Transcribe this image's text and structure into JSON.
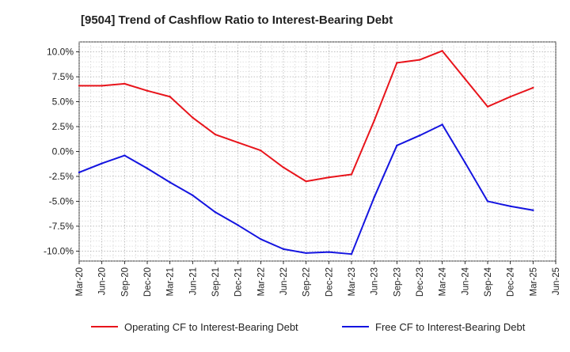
{
  "chart_data": {
    "type": "line",
    "title": "[9504]  Trend of Cashflow Ratio to Interest-Bearing Debt",
    "xlabel": "",
    "ylabel": "",
    "categories": [
      "Mar-20",
      "Jun-20",
      "Sep-20",
      "Dec-20",
      "Mar-21",
      "Jun-21",
      "Sep-21",
      "Dec-21",
      "Mar-22",
      "Jun-22",
      "Sep-22",
      "Dec-22",
      "Mar-23",
      "Jun-23",
      "Sep-23",
      "Dec-23",
      "Mar-24",
      "Jun-24",
      "Sep-24",
      "Dec-24",
      "Mar-25",
      "Jun-25"
    ],
    "ylim": [
      -11,
      11
    ],
    "yticks": [
      10.0,
      7.5,
      5.0,
      2.5,
      0.0,
      -2.5,
      -5.0,
      -7.5,
      -10.0
    ],
    "ytick_labels": [
      "10.0%",
      "7.5%",
      "5.0%",
      "2.5%",
      "0.0%",
      "-2.5%",
      "-5.0%",
      "-7.5%",
      "-10.0%"
    ],
    "grid": true,
    "legend_position": "bottom",
    "series": [
      {
        "name": "Operating CF to Interest-Bearing Debt",
        "color": "#e8141b",
        "values": [
          6.6,
          6.6,
          6.8,
          6.1,
          5.5,
          3.4,
          1.7,
          0.9,
          0.1,
          -1.6,
          -3.0,
          -2.6,
          -2.3,
          3.1,
          8.9,
          9.2,
          10.1,
          7.3,
          4.5,
          5.5,
          6.4,
          null
        ]
      },
      {
        "name": "Free CF to Interest-Bearing Debt",
        "color": "#1414e0",
        "values": [
          -2.1,
          -1.2,
          -0.4,
          -1.7,
          -3.1,
          -4.4,
          -6.1,
          -7.4,
          -8.8,
          -9.8,
          -10.2,
          -10.1,
          -10.3,
          -4.6,
          0.6,
          1.6,
          2.7,
          -1.1,
          -5.0,
          -5.5,
          -5.9,
          null
        ]
      }
    ]
  }
}
